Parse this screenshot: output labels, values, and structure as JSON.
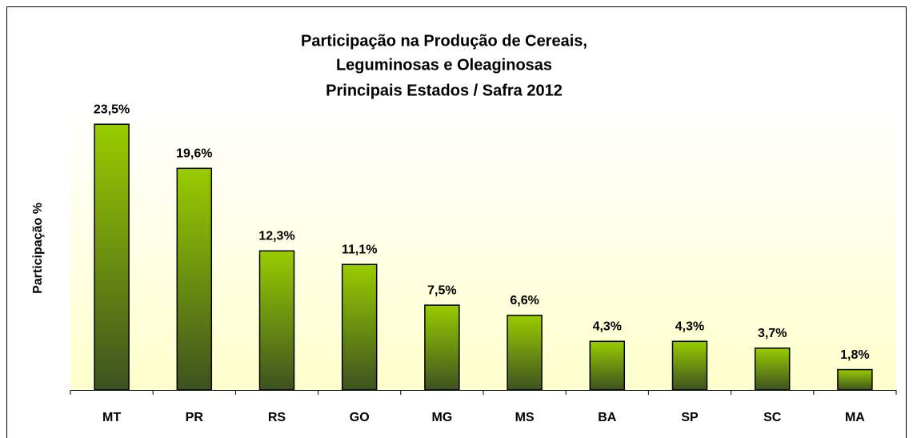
{
  "chart_data": {
    "type": "bar",
    "title": [
      "Participação na Produção de Cereais,",
      "Leguminosas e Oleaginosas",
      "Principais Estados / Safra 2012"
    ],
    "y_label": "Participação %",
    "categories": [
      "MT",
      "PR",
      "RS",
      "GO",
      "MG",
      "MS",
      "BA",
      "SP",
      "SC",
      "MA"
    ],
    "values": [
      23.5,
      19.6,
      12.3,
      11.1,
      7.5,
      6.6,
      4.3,
      4.3,
      3.7,
      1.8
    ],
    "value_labels": [
      "23,5%",
      "19,6%",
      "12,3%",
      "11,1%",
      "7,5%",
      "6,6%",
      "4,3%",
      "4,3%",
      "3,7%",
      "1,8%"
    ],
    "color": "#99cc00",
    "ylim": [
      0,
      25
    ]
  }
}
